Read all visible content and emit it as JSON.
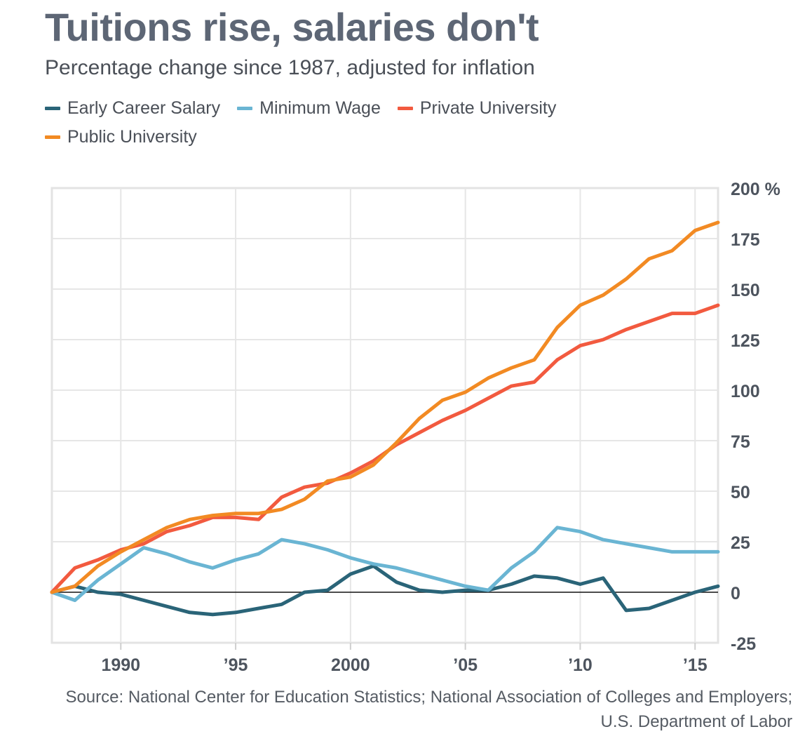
{
  "header": {
    "title": "Tuitions rise, salaries don't",
    "subtitle": "Percentage change since 1987, adjusted for inflation"
  },
  "legend": [
    {
      "label": "Early Career Salary",
      "color": "#2a6478"
    },
    {
      "label": "Minimum Wage",
      "color": "#6ab5d3"
    },
    {
      "label": "Private University",
      "color": "#f25a3f"
    },
    {
      "label": "Public University",
      "color": "#f28a23"
    }
  ],
  "source": "Source: National Center for Education Statistics; National Association of Colleges and Employers; U.S. Department of Labor",
  "chart_data": {
    "type": "line",
    "title": "Tuitions rise, salaries don't",
    "subtitle": "Percentage change since 1987, adjusted for inflation",
    "xlabel": "",
    "ylabel": "",
    "xlim": [
      1987,
      2016
    ],
    "ylim": [
      -25,
      200
    ],
    "x_ticks": [
      1990,
      1995,
      2000,
      2005,
      2010,
      2015
    ],
    "x_tick_labels": [
      "1990",
      "’95",
      "2000",
      "’05",
      "’10",
      "’15"
    ],
    "y_ticks": [
      -25,
      0,
      25,
      50,
      75,
      100,
      125,
      150,
      175,
      200
    ],
    "y_tick_labels": [
      "-25",
      "0",
      "25",
      "50",
      "75",
      "100",
      "125",
      "150",
      "175",
      "200 %"
    ],
    "y_axis_side": "right",
    "grid": true,
    "legend_position": "top-left",
    "x": [
      1987,
      1988,
      1989,
      1990,
      1991,
      1992,
      1993,
      1994,
      1995,
      1996,
      1997,
      1998,
      1999,
      2000,
      2001,
      2002,
      2003,
      2004,
      2005,
      2006,
      2007,
      2008,
      2009,
      2010,
      2011,
      2012,
      2013,
      2014,
      2015,
      2016
    ],
    "series": [
      {
        "name": "Early Career Salary",
        "color": "#2a6478",
        "values": [
          0,
          3,
          0,
          -1,
          -4,
          -7,
          -10,
          -11,
          -10,
          -8,
          -6,
          0,
          1,
          9,
          13,
          5,
          1,
          0,
          1,
          1,
          4,
          8,
          7,
          4,
          7,
          -9,
          -8,
          -4,
          0,
          3
        ]
      },
      {
        "name": "Minimum Wage",
        "color": "#6ab5d3",
        "values": [
          0,
          -4,
          6,
          14,
          22,
          19,
          15,
          12,
          16,
          19,
          26,
          24,
          21,
          17,
          14,
          12,
          9,
          6,
          3,
          1,
          12,
          20,
          32,
          30,
          26,
          24,
          22,
          20,
          20,
          20
        ]
      },
      {
        "name": "Private University",
        "color": "#f25a3f",
        "values": [
          0,
          12,
          16,
          21,
          24,
          30,
          33,
          37,
          37,
          36,
          47,
          52,
          54,
          59,
          65,
          73,
          79,
          85,
          90,
          96,
          102,
          104,
          115,
          122,
          125,
          130,
          134,
          138,
          138,
          142
        ]
      },
      {
        "name": "Public University",
        "color": "#f28a23",
        "values": [
          0,
          3,
          13,
          20,
          26,
          32,
          36,
          38,
          39,
          39,
          41,
          46,
          55,
          57,
          63,
          74,
          86,
          95,
          99,
          106,
          111,
          115,
          131,
          142,
          147,
          155,
          165,
          169,
          179,
          183
        ]
      }
    ]
  }
}
